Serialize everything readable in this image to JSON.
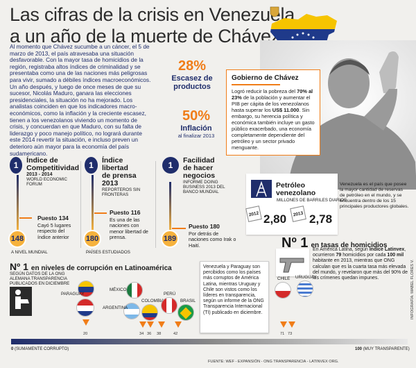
{
  "header": {
    "title_line1": "Las cifras de la crisis en Venezuela",
    "title_line2": "a un año de la muerte de Chávez"
  },
  "intro": "Al momento que Chávez sucumbe a un cáncer, el 5 de marzo de 2013, el país atravesaba una situación desfavorable. Con la mayor tasa de homicidios de la región, registraba altos índices de criminalidad y se presentaba como una de las naciones más peligrosas para vivir, sumado a débiles índices macroeconómicos. Un año después, y luego de once meses de que su sucesor, Nicolás Maduro, ganara las elecciones presidenciales, la situación no ha mejorado. Los analistas coinciden en que los indicadores macro-económicos, como la inflación y la creciente escasez, tienen a los venezolanos viviendo un momento de crisis, y concuerdan en que Maduro, con su falta de liderazgo y poco manejo político, no logrará durante este 2014 revertir la situación, e incluso preven un deterioro aún mayor para la economía del país sudamericano.",
  "stats": {
    "escasez_value": "28%",
    "escasez_label_1": "Escasez de",
    "escasez_label_2": "productos",
    "inflacion_value": "50%",
    "inflacion_label": "Inflación",
    "inflacion_sub": "al finalizar 2013"
  },
  "gobierno": {
    "title": "Gobierno de Chávez",
    "text_1": "Logró reducir la pobreza del ",
    "text_bold_1": "70% al 23%",
    "text_2": " de la población y aumentar el PIB per cápita de los venezolanos hasta superar los ",
    "text_bold_2": "US$ 11.000",
    "text_3": ". Sin embargo, su herencia política y económica también incluye un gasto público exacerbado, una economía completamente dependiente del petróleo y un sector privado menguante."
  },
  "rankings": [
    {
      "rank_top": "1",
      "title_1": "Índice de",
      "title_2": "Competitividad",
      "years": "2013 - 2014",
      "source": "WORLD ECONOMIC FORUM",
      "puesto_label": "Puesto",
      "puesto_value": "134",
      "desc": "Cayó 5 lugares respecto del índice anterior",
      "rank_bottom": "148",
      "bottom_label": "A NIVEL MUNDIAL"
    },
    {
      "rank_top": "1",
      "title_1": "Índice",
      "title_2": "libertad",
      "title_3": "de prensa 2013",
      "source": "REPORTEROS SIN FRONTERAS",
      "puesto_label": "Puesto",
      "puesto_value": "116",
      "desc": "Es una de las naciones con menor libertad de prensa.",
      "rank_bottom": "180",
      "bottom_label": "PAÍSES ESTUDIADOS"
    },
    {
      "rank_top": "1",
      "title_1": "Facilidad",
      "title_2": "de hacer",
      "title_3": "negocios",
      "source": "INFORME DOING BUSINESS 2013 DEL BANCO MUNDIAL",
      "puesto_label": "Puesto",
      "puesto_value": "180",
      "desc": "Por detrás de naciones como Irak o Haití.",
      "rank_bottom": "189",
      "bottom_label": ""
    }
  ],
  "petroleo": {
    "title_1": "Petróleo",
    "title_2": "venezolano",
    "sub": "MILLONES DE BARRILES DIARIOS",
    "year_1": "2012",
    "value_1": "2,80",
    "year_2": "2013",
    "value_2": "2,78",
    "note": "Venezuela es el país que posee la mayor cantidad de reservas de petróleo en el mundo, y se encuentra dentro de los 15 principales productores globales."
  },
  "homicidios": {
    "rank": "Nº 1",
    "title": "en tasas de homicidios",
    "text_1": "En América Latina, según ",
    "bold_1": "Índice Latinvex",
    "text_2": ", ocurrieron ",
    "bold_2": "79",
    "text_3": " homicidios por cada ",
    "bold_3": "100 mil",
    "text_4": " habitante en 2013, mientras que ONG calculan que es la cuarta tasa más elevada del mundo, y revelaron que más del 90% de los crímenes quedan impunes."
  },
  "corrupcion": {
    "rank": "Nº 1",
    "title": "en niveles de corrupción en Latinoamérica",
    "source": "SEGÚN DATOS DE LA ONG ALEMANA TRANSPARENCIA PUBLICADOS EN DICIEMBRE",
    "note": "Venezuela y Paraguay son percibidos como los países más corruptos de América Latina, mientras Uruguay y Chile son vistos como los líderes en transparencia, según un informe de la ONG Transparencia Internacional (TI) publicado en diciembre.",
    "countries": [
      "PARAGUAY",
      "MÉXICO",
      "ARGENTINA",
      "COLOMBIA",
      "PERÚ",
      "BRASIL",
      "CHILE",
      "URUGUAY"
    ],
    "scale_min": "0",
    "scale_min_label": "(SUMAMENTE CORRUPTO)",
    "scale_max": "100",
    "scale_max_label": "(MUY TRANSPARENTE)",
    "ticks": [
      "20",
      "34",
      "36",
      "38",
      "42",
      "71",
      "73"
    ]
  },
  "footer": {
    "source": "FUENTE: WEF - EXPANSIÓN - ONG TRANSPARENCIA - LATINVEX ORG.",
    "credit": "INFOGRAFÍA: MABEL FLORES V."
  },
  "colors": {
    "navy": "#1f2d6b",
    "orange": "#f07d18",
    "gold": "#f6b23d"
  }
}
